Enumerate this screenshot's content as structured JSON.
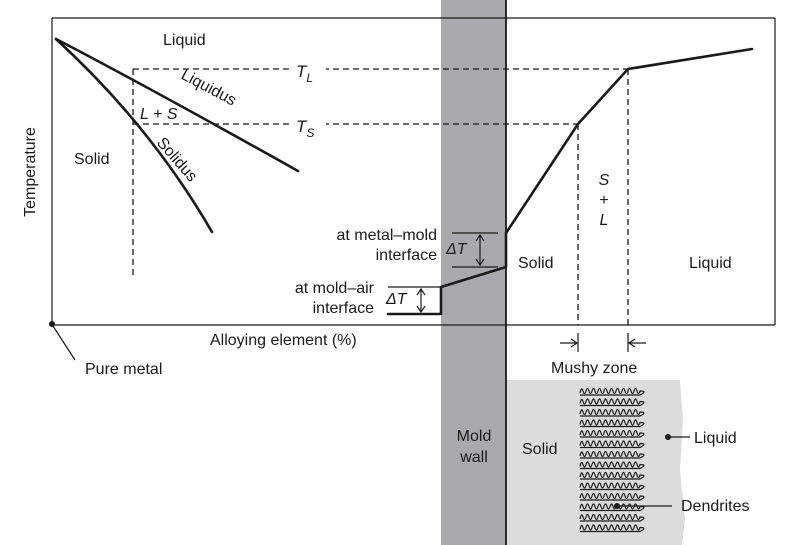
{
  "axes": {
    "y_label": "Temperature",
    "x_label": "Alloying element (%)",
    "origin_label": "Pure metal"
  },
  "phase_diagram": {
    "liquid": "Liquid",
    "solid": "Solid",
    "two_phase": "L + S",
    "liquidus": "Liquidus",
    "solidus": "Solidus",
    "tl_main": "T",
    "tl_sub": "L",
    "ts_main": "T",
    "ts_sub": "S"
  },
  "profile": {
    "metal_mold_line1": "at metal–mold",
    "metal_mold_line2": "interface",
    "mold_air_line1": "at mold–air",
    "mold_air_line2": "interface",
    "delta_t": "ΔT",
    "solid": "Solid",
    "liquid": "Liquid",
    "mushy_s": "S",
    "mushy_plus": "+",
    "mushy_l": "L",
    "mushy_zone": "Mushy zone"
  },
  "mold": {
    "line1": "Mold",
    "line2": "wall"
  },
  "casting": {
    "solid": "Solid",
    "liquid": "Liquid",
    "dendrites": "Dendrites"
  }
}
